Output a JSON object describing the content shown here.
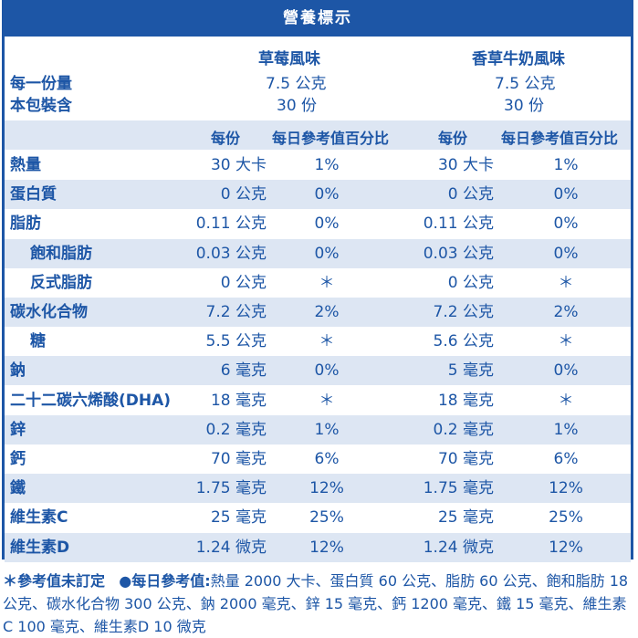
{
  "title": "營養標示",
  "flavors": [
    "草莓風味",
    "香草牛奶風味"
  ],
  "serving": {
    "size_label": "每一份量",
    "count_label": "本包裝含",
    "values": [
      {
        "size": "7.5 公克",
        "count": "30 份"
      },
      {
        "size": "7.5 公克",
        "count": "30 份"
      }
    ]
  },
  "column_headers": {
    "per_serving": "每份",
    "dv_percent": "每日參考值百分比"
  },
  "rows": [
    {
      "name": "熱量",
      "indent": false,
      "v1": "30 大卡",
      "p1": "1%",
      "v2": "30 大卡",
      "p2": "1%"
    },
    {
      "name": "蛋白質",
      "indent": false,
      "v1": "0 公克",
      "p1": "0%",
      "v2": "0 公克",
      "p2": "0%"
    },
    {
      "name": "脂肪",
      "indent": false,
      "v1": "0.11 公克",
      "p1": "0%",
      "v2": "0.11 公克",
      "p2": "0%"
    },
    {
      "name": "飽和脂肪",
      "indent": true,
      "v1": "0.03 公克",
      "p1": "0%",
      "v2": "0.03 公克",
      "p2": "0%"
    },
    {
      "name": "反式脂肪",
      "indent": true,
      "v1": "0 公克",
      "p1": "＊",
      "v2": "0 公克",
      "p2": "＊"
    },
    {
      "name": "碳水化合物",
      "indent": false,
      "v1": "7.2 公克",
      "p1": "2%",
      "v2": "7.2 公克",
      "p2": "2%"
    },
    {
      "name": "糖",
      "indent": true,
      "v1": "5.5 公克",
      "p1": "＊",
      "v2": "5.6 公克",
      "p2": "＊"
    },
    {
      "name": "鈉",
      "indent": false,
      "v1": "6 毫克",
      "p1": "0%",
      "v2": "5 毫克",
      "p2": "0%"
    },
    {
      "name": "二十二碳六烯酸(DHA)",
      "indent": false,
      "v1": "18 毫克",
      "p1": "＊",
      "v2": "18 毫克",
      "p2": "＊"
    },
    {
      "name": "鋅",
      "indent": false,
      "v1": "0.2 毫克",
      "p1": "1%",
      "v2": "0.2 毫克",
      "p2": "1%"
    },
    {
      "name": "鈣",
      "indent": false,
      "v1": "70 毫克",
      "p1": "6%",
      "v2": "70 毫克",
      "p2": "6%"
    },
    {
      "name": "鐵",
      "indent": false,
      "v1": "1.75 毫克",
      "p1": "12%",
      "v2": "1.75 毫克",
      "p2": "12%"
    },
    {
      "name": "維生素C",
      "indent": false,
      "v1": "25 毫克",
      "p1": "25%",
      "v2": "25 毫克",
      "p2": "25%"
    },
    {
      "name": "維生素D",
      "indent": false,
      "v1": "1.24 微克",
      "p1": "12%",
      "v2": "1.24 微克",
      "p2": "12%"
    }
  ],
  "footnote": {
    "star_note": "＊參考值未訂定",
    "dv_label": "●每日參考值:",
    "dv_text": "熱量 2000 大卡、蛋白質 60 公克、脂肪 60 公克、飽和脂肪 18 公克、碳水化合物 300 公克、鈉 2000 毫克、鋅 15 毫克、鈣 1200 毫克、鐵 15 毫克、維生素C 100 毫克、維生素D 10 微克"
  },
  "colors": {
    "primary": "#1d56a6",
    "shade": "#dde6f3",
    "background": "#ffffff"
  }
}
